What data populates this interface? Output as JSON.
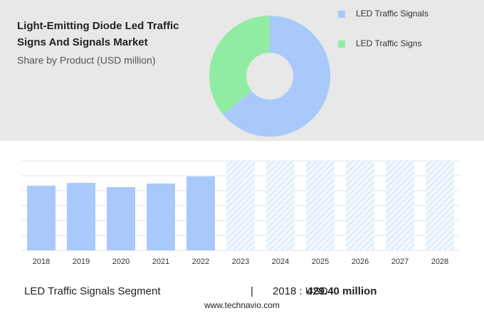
{
  "chart_data": [
    {
      "type": "pie",
      "title_lines": [
        "Light-Emitting Diode Led Traffic",
        "Signs And Signals Market"
      ],
      "subtitle": "Share by Product (USD million)",
      "series": [
        {
          "name": "LED Traffic Signals",
          "color": "#a9c9fb",
          "values": [
            64
          ]
        },
        {
          "name": "LED Traffic Signs",
          "color": "#90eca2",
          "values": [
            36
          ]
        }
      ]
    },
    {
      "type": "bar",
      "categories": [
        "2018",
        "2019",
        "2020",
        "2021",
        "2022",
        "2023",
        "2024",
        "2025",
        "2026",
        "2027",
        "2028"
      ],
      "values": [
        429.4,
        448,
        420,
        444,
        491,
        null,
        null,
        null,
        null,
        null,
        null
      ],
      "color": "#a9c9fb",
      "ylim": [
        0,
        595
      ]
    }
  ],
  "footer": {
    "segment": "LED Traffic Signals Segment",
    "separator": "|",
    "prefix": "2018 : USD",
    "value_label": "429.40 million",
    "website": "www.technavio.com"
  }
}
